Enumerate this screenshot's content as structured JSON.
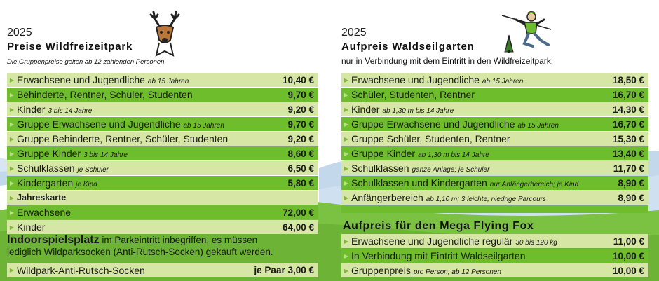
{
  "left": {
    "year": "2025",
    "title": "Preise Wildfreizeitpark",
    "note": "Die Gruppenpreise gelten ab 12 zahlenden Personen",
    "rows": [
      {
        "label": "Erwachsene und Jugendliche",
        "sub": "ab 15 Jahren",
        "price": "10,40 €"
      },
      {
        "label": "Behinderte, Rentner, Schüler, Studenten",
        "sub": "",
        "price": "9,70 €"
      },
      {
        "label": "Kinder",
        "sub": "3 bis 14 Jahre",
        "price": "9,20 €"
      },
      {
        "label": "Gruppe Erwachsene und Jugendliche",
        "sub": "ab 15 Jahren",
        "price": "9,70 €"
      },
      {
        "label": "Gruppe Behinderte, Rentner, Schüler, Studenten",
        "sub": "",
        "price": "9,20 €"
      },
      {
        "label": "Gruppe Kinder",
        "sub": "3 bis 14 Jahre",
        "price": "8,60 €"
      },
      {
        "label": "Schulklassen",
        "sub": "je Schüler",
        "price": "6,50 €"
      },
      {
        "label": "Kindergarten",
        "sub": "je Kind",
        "price": "5,80 €"
      },
      {
        "label": "Jahreskarte",
        "sub": "",
        "price": ""
      },
      {
        "label": "Erwachsene",
        "sub": "",
        "price": "72,00 €"
      },
      {
        "label": "Kinder",
        "sub": "",
        "price": "64,00 €"
      }
    ],
    "indoor_title": "Indoorspielsplatz",
    "indoor_text1": "im Parkeintritt inbegriffen, es müssen",
    "indoor_text2": "lediglich Wildparksocken (Anti-Rutsch-Socken) gekauft werden.",
    "socks_label": "Wildpark-Anti-Rutsch-Socken",
    "socks_price": "je Paar 3,00 €"
  },
  "right": {
    "year": "2025",
    "title": "Aufpreis Waldseilgarten",
    "subtitle": "nur in Verbindung mit dem Eintritt in den Wildfreizeitpark.",
    "rows": [
      {
        "label": "Erwachsene und Jugendliche",
        "sub": "ab 15 Jahren",
        "price": "18,50 €"
      },
      {
        "label": "Schüler, Studenten, Rentner",
        "sub": "",
        "price": "16,70 €"
      },
      {
        "label": "Kinder",
        "sub": "ab 1,30 m bis 14 Jahre",
        "price": "14,30 €"
      },
      {
        "label": "Gruppe Erwachsene und Jugendliche",
        "sub": "ab 15 Jahren",
        "price": "16,70 €"
      },
      {
        "label": "Gruppe Schüler, Studenten, Rentner",
        "sub": "",
        "price": "15,30 €"
      },
      {
        "label": "Gruppe Kinder",
        "sub": "ab 1,30 m bis 14 Jahre",
        "price": "13,40 €"
      },
      {
        "label": "Schulklassen",
        "sub": "ganze Anlage; je Schüler",
        "price": "11,70 €"
      },
      {
        "label": "Schulklassen und Kindergarten",
        "sub": "nur Anfängerbereich; je Kind",
        "price": "8,90 €"
      },
      {
        "label": "Anfängerbereich",
        "sub": "ab 1,10 m; 3 leichte, niedrige Parcours",
        "price": "8,90 €"
      }
    ],
    "fox_title": "Aufpreis für den Mega Flying Fox",
    "fox_rows": [
      {
        "label": "Erwachsene und Jugendliche regulär",
        "sub": "30 bis 120 kg",
        "price": "11,00 €"
      },
      {
        "label": "In Verbindung mit Eintritt Waldseilgarten",
        "sub": "",
        "price": "10,00 €"
      },
      {
        "label": "Gruppenpreis",
        "sub": "pro Person; ab 12 Personen",
        "price": "10,00 €"
      }
    ]
  },
  "colors": {
    "row_light": "#d6e6a5",
    "row_dark": "#6ebd2d",
    "sky": "#b9d3ec",
    "hill": "#7cc242"
  },
  "icons": {
    "left": "deer-head-icon",
    "right": "climber-icon"
  }
}
